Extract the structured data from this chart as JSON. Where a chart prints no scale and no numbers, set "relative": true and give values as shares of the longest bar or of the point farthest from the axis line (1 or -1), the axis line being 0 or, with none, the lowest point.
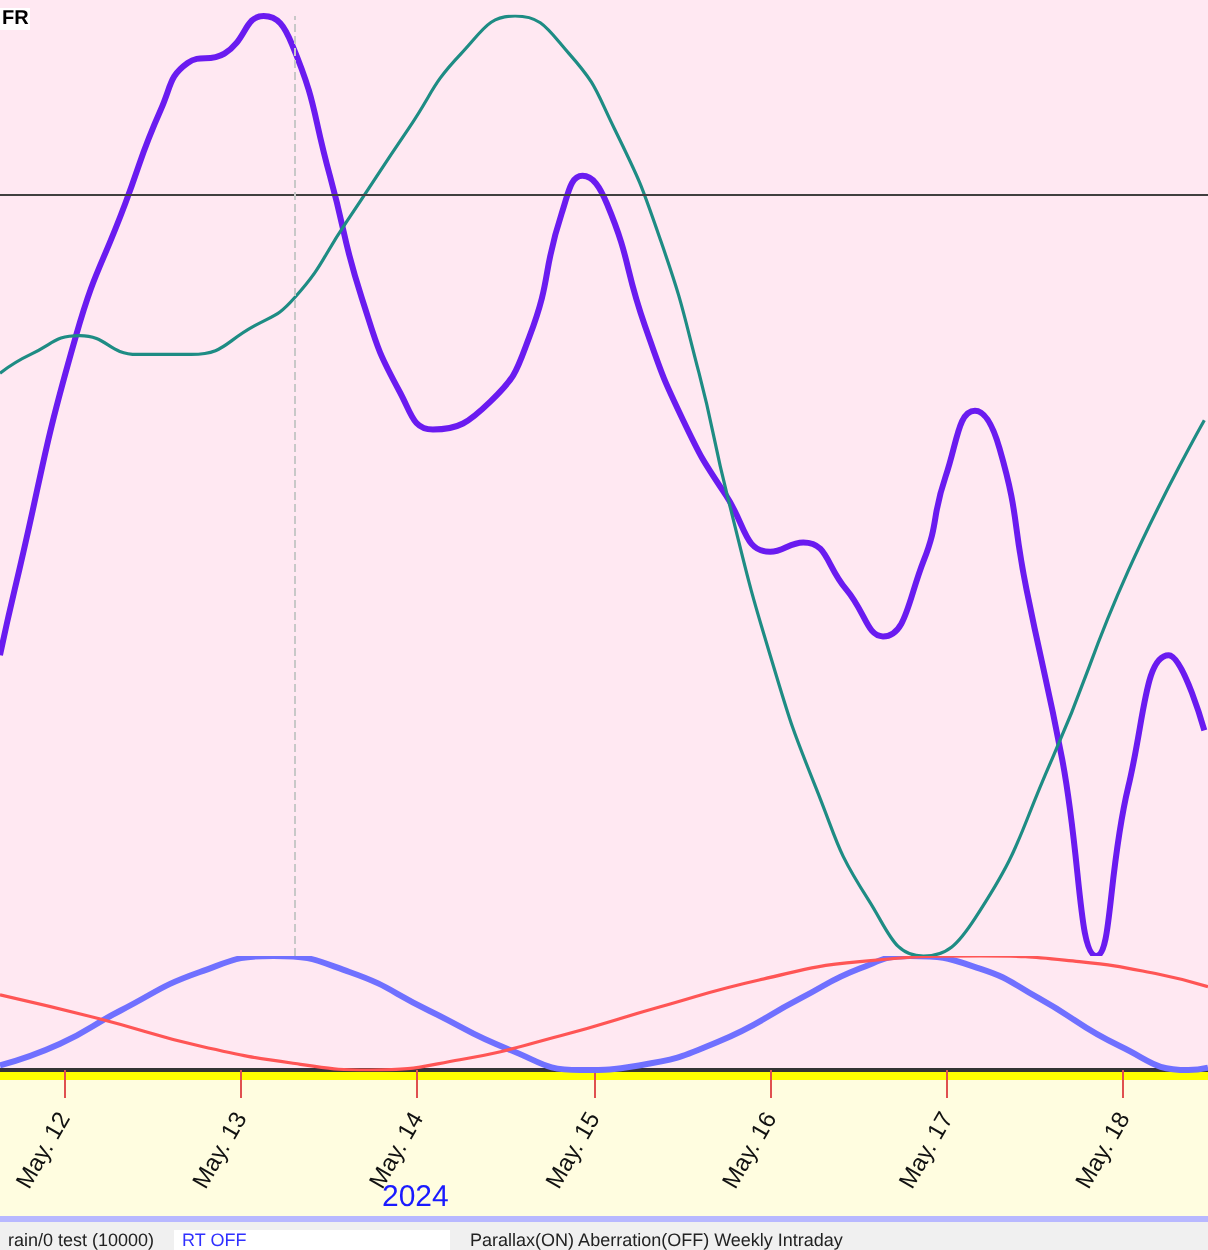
{
  "chart_data": [
    {
      "type": "line",
      "relative": true,
      "marker": "none",
      "tick_labels": false,
      "xlim": [
        "2024-05-11T15:20",
        "2024-05-18T11:30"
      ],
      "annotations": [
        "FR"
      ],
      "ref_lines": [
        {
          "axis": "y",
          "value": 0.81,
          "color": "#404040",
          "line_style": "solid"
        },
        {
          "axis": "x",
          "value": "2024-05-13T07:20",
          "color": "#c8c8c8",
          "line_style": "dashed"
        }
      ],
      "series": [
        {
          "color": "#6a1bf0",
          "x": [
            "2024-05-11T15:20",
            "2024-05-11T17:20",
            "2024-05-12T01:40",
            "2024-05-12T08:20",
            "2024-05-12T13:10",
            "2024-05-12T16:50",
            "2024-05-12T21:50",
            "2024-05-13T03:10",
            "2024-05-13T07:00",
            "2024-05-13T12:10",
            "2024-05-13T16:30",
            "2024-05-13T21:40",
            "2024-05-14T02:10",
            "2024-05-14T10:00",
            "2024-05-14T15:20",
            "2024-05-14T19:40",
            "2024-05-14T22:30",
            "2024-05-15T01:50",
            "2024-05-15T07:00",
            "2024-05-15T12:10",
            "2024-05-15T18:00",
            "2024-05-16T00:00",
            "2024-05-16T04:30",
            "2024-05-16T10:20",
            "2024-05-16T15:20",
            "2024-05-16T20:50",
            "2024-05-16T23:50",
            "2024-05-17T03:50",
            "2024-05-17T07:10",
            "2024-05-17T10:50",
            "2024-05-17T15:40",
            "2024-05-17T20:20",
            "2024-05-18T00:40",
            "2024-05-18T06:10",
            "2024-05-18T11:00"
          ],
          "values": [
            0.32,
            0.39,
            0.66,
            0.8,
            0.9,
            0.95,
            0.96,
            1.0,
            0.97,
            0.83,
            0.7,
            0.6,
            0.56,
            0.59,
            0.66,
            0.79,
            0.83,
            0.8,
            0.67,
            0.57,
            0.49,
            0.43,
            0.44,
            0.39,
            0.34,
            0.42,
            0.51,
            0.58,
            0.54,
            0.39,
            0.21,
            0.0,
            0.18,
            0.32,
            0.24
          ]
        },
        {
          "color": "#1e8c84",
          "x": [
            "2024-05-11T15:20",
            "2024-05-11T19:30",
            "2024-05-12T02:10",
            "2024-05-12T10:00",
            "2024-05-12T17:20",
            "2024-05-13T01:50",
            "2024-05-13T07:20",
            "2024-05-13T14:20",
            "2024-05-13T22:50",
            "2024-05-14T06:00",
            "2024-05-14T13:20",
            "2024-05-14T20:40",
            "2024-05-15T02:50",
            "2024-05-15T09:10",
            "2024-05-15T14:20",
            "2024-05-15T18:10",
            "2024-05-16T00:00",
            "2024-05-16T06:10",
            "2024-05-16T13:20",
            "2024-05-16T20:50",
            "2024-05-17T03:50",
            "2024-05-17T14:20",
            "2024-05-18T00:40",
            "2024-05-18T11:00"
          ],
          "values": [
            0.62,
            0.64,
            0.66,
            0.64,
            0.64,
            0.67,
            0.7,
            0.78,
            0.88,
            0.96,
            1.0,
            0.96,
            0.88,
            0.76,
            0.62,
            0.49,
            0.32,
            0.18,
            0.06,
            0.0,
            0.04,
            0.21,
            0.41,
            0.57
          ]
        }
      ]
    },
    {
      "type": "line",
      "relative": true,
      "marker": "none",
      "tick_labels": "x",
      "xlim": [
        "2024-05-11T15:20",
        "2024-05-18T11:30"
      ],
      "xticks": [
        {
          "value": "2024-05-12",
          "label": "May. 12"
        },
        {
          "value": "2024-05-13",
          "label": "May. 13"
        },
        {
          "value": "2024-05-14",
          "label": "May. 14"
        },
        {
          "value": "2024-05-15",
          "label": "May. 15"
        },
        {
          "value": "2024-05-16",
          "label": "May. 16"
        },
        {
          "value": "2024-05-17",
          "label": "May. 17"
        },
        {
          "value": "2024-05-18",
          "label": "May. 18"
        }
      ],
      "annotations": [
        "2024",
        "rain/0 test (10000)",
        "RT OFF",
        "Parallax(ON) Aberration(OFF) Weekly Intraday"
      ],
      "series": [
        {
          "color": "#7070ff",
          "x": [
            "2024-05-11T15:20",
            "2024-05-11T23:30",
            "2024-05-12T07:40",
            "2024-05-12T18:30",
            "2024-05-13T04:30",
            "2024-05-13T14:50",
            "2024-05-14T01:40",
            "2024-05-14T12:30",
            "2024-05-14T22:10",
            "2024-05-15T06:10",
            "2024-05-15T17:00",
            "2024-05-16T04:10",
            "2024-05-16T12:10",
            "2024-05-16T19:00",
            "2024-05-17T04:30",
            "2024-05-17T12:30",
            "2024-05-17T23:30",
            "2024-05-18T08:50",
            "2024-05-18T11:30"
          ],
          "values": [
            0.04,
            0.23,
            0.52,
            0.86,
            1.0,
            0.86,
            0.52,
            0.18,
            0.0,
            0.04,
            0.25,
            0.63,
            0.89,
            1.0,
            0.89,
            0.63,
            0.21,
            0.0,
            0.02
          ]
        },
        {
          "color": "#ff5555",
          "x": [
            "2024-05-11T15:20",
            "2024-05-12T04:50",
            "2024-05-12T18:30",
            "2024-05-13T08:10",
            "2024-05-13T17:30",
            "2024-05-14T05:50",
            "2024-05-14T19:30",
            "2024-05-15T08:50",
            "2024-05-15T22:30",
            "2024-05-16T12:10",
            "2024-05-17T04:30",
            "2024-05-17T18:00",
            "2024-05-18T04:50",
            "2024-05-18T11:30"
          ],
          "values": [
            0.66,
            0.45,
            0.21,
            0.05,
            0.0,
            0.09,
            0.3,
            0.55,
            0.79,
            0.95,
            1.0,
            0.95,
            0.84,
            0.73
          ]
        }
      ]
    }
  ]
}
